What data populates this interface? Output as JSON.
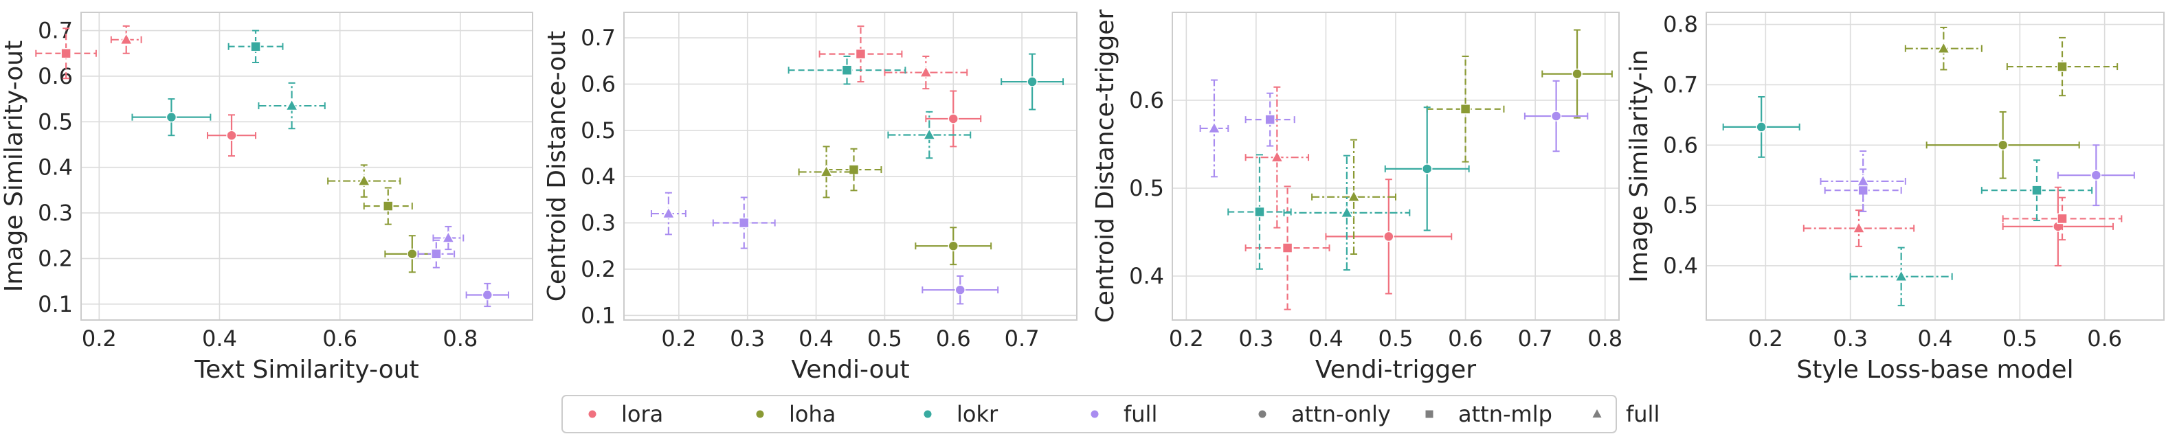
{
  "legend": {
    "entries": [
      {
        "label": "lora",
        "marker": "circle",
        "color": "#f0717f"
      },
      {
        "label": "loha",
        "marker": "circle",
        "color": "#8a9a34"
      },
      {
        "label": "lokr",
        "marker": "circle",
        "color": "#38aaa0"
      },
      {
        "label": "full",
        "marker": "circle",
        "color": "#a98cf0"
      },
      {
        "label": "attn-only",
        "marker": "circle",
        "color": "#7f7f7f"
      },
      {
        "label": "attn-mlp",
        "marker": "square",
        "color": "#7f7f7f"
      },
      {
        "label": "full",
        "marker": "triangle",
        "color": "#7f7f7f"
      }
    ]
  },
  "colors": {
    "lora": "#f0717f",
    "loha": "#8a9a34",
    "lokr": "#38aaa0",
    "full": "#a98cf0"
  },
  "line_styles": {
    "attn-only": "solid",
    "attn-mlp": "dashed",
    "full": "dashdot"
  },
  "chart_data": [
    {
      "type": "scatter",
      "xlabel": "Text Similarity-out",
      "ylabel": "Image Similarity-out",
      "xlim": [
        0.17,
        0.92
      ],
      "ylim": [
        0.065,
        0.74
      ],
      "xticks": [
        0.2,
        0.4,
        0.6,
        0.8
      ],
      "yticks": [
        0.1,
        0.2,
        0.3,
        0.4,
        0.5,
        0.6,
        0.7
      ],
      "grid": true,
      "points": [
        {
          "algo": "lora",
          "config": "attn-only",
          "x": 0.42,
          "xerr": 0.04,
          "y": 0.47,
          "yerr": 0.045
        },
        {
          "algo": "lora",
          "config": "attn-mlp",
          "x": 0.145,
          "xerr": 0.05,
          "y": 0.65,
          "yerr": 0.055
        },
        {
          "algo": "lora",
          "config": "full",
          "x": 0.245,
          "xerr": 0.025,
          "y": 0.68,
          "yerr": 0.03
        },
        {
          "algo": "loha",
          "config": "attn-only",
          "x": 0.72,
          "xerr": 0.045,
          "y": 0.21,
          "yerr": 0.04
        },
        {
          "algo": "loha",
          "config": "attn-mlp",
          "x": 0.68,
          "xerr": 0.04,
          "y": 0.315,
          "yerr": 0.04
        },
        {
          "algo": "loha",
          "config": "full",
          "x": 0.64,
          "xerr": 0.06,
          "y": 0.37,
          "yerr": 0.035
        },
        {
          "algo": "lokr",
          "config": "attn-only",
          "x": 0.32,
          "xerr": 0.065,
          "y": 0.51,
          "yerr": 0.04
        },
        {
          "algo": "lokr",
          "config": "attn-mlp",
          "x": 0.46,
          "xerr": 0.045,
          "y": 0.665,
          "yerr": 0.035
        },
        {
          "algo": "lokr",
          "config": "full",
          "x": 0.52,
          "xerr": 0.055,
          "y": 0.535,
          "yerr": 0.05
        },
        {
          "algo": "full",
          "config": "attn-only",
          "x": 0.845,
          "xerr": 0.035,
          "y": 0.12,
          "yerr": 0.025
        },
        {
          "algo": "full",
          "config": "attn-mlp",
          "x": 0.76,
          "xerr": 0.03,
          "y": 0.21,
          "yerr": 0.03
        },
        {
          "algo": "full",
          "config": "full",
          "x": 0.78,
          "xerr": 0.025,
          "y": 0.245,
          "yerr": 0.025
        }
      ]
    },
    {
      "type": "scatter",
      "xlabel": "Vendi-out",
      "ylabel": "Centroid Distance-out",
      "xlim": [
        0.12,
        0.78
      ],
      "ylim": [
        0.09,
        0.755
      ],
      "xticks": [
        0.2,
        0.3,
        0.4,
        0.5,
        0.6,
        0.7
      ],
      "yticks": [
        0.1,
        0.2,
        0.3,
        0.4,
        0.5,
        0.6,
        0.7
      ],
      "grid": true,
      "points": [
        {
          "algo": "lora",
          "config": "attn-only",
          "x": 0.6,
          "xerr": 0.04,
          "y": 0.525,
          "yerr": 0.06
        },
        {
          "algo": "lora",
          "config": "attn-mlp",
          "x": 0.465,
          "xerr": 0.06,
          "y": 0.665,
          "yerr": 0.06
        },
        {
          "algo": "lora",
          "config": "full",
          "x": 0.56,
          "xerr": 0.06,
          "y": 0.625,
          "yerr": 0.035
        },
        {
          "algo": "loha",
          "config": "attn-only",
          "x": 0.6,
          "xerr": 0.055,
          "y": 0.25,
          "yerr": 0.04
        },
        {
          "algo": "loha",
          "config": "attn-mlp",
          "x": 0.455,
          "xerr": 0.04,
          "y": 0.415,
          "yerr": 0.045
        },
        {
          "algo": "loha",
          "config": "full",
          "x": 0.415,
          "xerr": 0.04,
          "y": 0.41,
          "yerr": 0.055
        },
        {
          "algo": "lokr",
          "config": "attn-only",
          "x": 0.715,
          "xerr": 0.045,
          "y": 0.605,
          "yerr": 0.06
        },
        {
          "algo": "lokr",
          "config": "attn-mlp",
          "x": 0.445,
          "xerr": 0.085,
          "y": 0.63,
          "yerr": 0.03
        },
        {
          "algo": "lokr",
          "config": "full",
          "x": 0.565,
          "xerr": 0.06,
          "y": 0.49,
          "yerr": 0.05
        },
        {
          "algo": "full",
          "config": "attn-only",
          "x": 0.61,
          "xerr": 0.055,
          "y": 0.155,
          "yerr": 0.03
        },
        {
          "algo": "full",
          "config": "attn-mlp",
          "x": 0.295,
          "xerr": 0.045,
          "y": 0.3,
          "yerr": 0.055
        },
        {
          "algo": "full",
          "config": "full",
          "x": 0.185,
          "xerr": 0.025,
          "y": 0.32,
          "yerr": 0.045
        }
      ]
    },
    {
      "type": "scatter",
      "xlabel": "Vendi-trigger",
      "ylabel": "Centroid Distance-trigger",
      "xlim": [
        0.18,
        0.82
      ],
      "ylim": [
        0.35,
        0.7
      ],
      "xticks": [
        0.2,
        0.3,
        0.4,
        0.5,
        0.6,
        0.7,
        0.8
      ],
      "yticks": [
        0.4,
        0.5,
        0.6
      ],
      "grid": true,
      "points": [
        {
          "algo": "lora",
          "config": "attn-only",
          "x": 0.49,
          "xerr": 0.09,
          "y": 0.445,
          "yerr": 0.065
        },
        {
          "algo": "lora",
          "config": "attn-mlp",
          "x": 0.345,
          "xerr": 0.06,
          "y": 0.432,
          "yerr": 0.07
        },
        {
          "algo": "lora",
          "config": "full",
          "x": 0.33,
          "xerr": 0.045,
          "y": 0.535,
          "yerr": 0.08
        },
        {
          "algo": "loha",
          "config": "attn-only",
          "x": 0.76,
          "xerr": 0.05,
          "y": 0.63,
          "yerr": 0.05
        },
        {
          "algo": "loha",
          "config": "attn-mlp",
          "x": 0.6,
          "xerr": 0.055,
          "y": 0.59,
          "yerr": 0.06
        },
        {
          "algo": "loha",
          "config": "full",
          "x": 0.44,
          "xerr": 0.06,
          "y": 0.49,
          "yerr": 0.065
        },
        {
          "algo": "lokr",
          "config": "attn-only",
          "x": 0.545,
          "xerr": 0.06,
          "y": 0.522,
          "yerr": 0.07
        },
        {
          "algo": "lokr",
          "config": "attn-mlp",
          "x": 0.305,
          "xerr": 0.045,
          "y": 0.473,
          "yerr": 0.065
        },
        {
          "algo": "lokr",
          "config": "full",
          "x": 0.43,
          "xerr": 0.09,
          "y": 0.472,
          "yerr": 0.065
        },
        {
          "algo": "full",
          "config": "attn-only",
          "x": 0.73,
          "xerr": 0.045,
          "y": 0.582,
          "yerr": 0.04
        },
        {
          "algo": "full",
          "config": "attn-mlp",
          "x": 0.32,
          "xerr": 0.035,
          "y": 0.578,
          "yerr": 0.03
        },
        {
          "algo": "full",
          "config": "full",
          "x": 0.24,
          "xerr": 0.02,
          "y": 0.568,
          "yerr": 0.055
        }
      ]
    },
    {
      "type": "scatter",
      "xlabel": "Style Loss-base model",
      "ylabel": "Image Similarity-in",
      "xlim": [
        0.13,
        0.67
      ],
      "ylim": [
        0.31,
        0.82
      ],
      "xticks": [
        0.2,
        0.3,
        0.4,
        0.5,
        0.6
      ],
      "yticks": [
        0.4,
        0.5,
        0.6,
        0.7,
        0.8
      ],
      "grid": true,
      "points": [
        {
          "algo": "lora",
          "config": "attn-only",
          "x": 0.545,
          "xerr": 0.065,
          "y": 0.465,
          "yerr": 0.065
        },
        {
          "algo": "lora",
          "config": "attn-mlp",
          "x": 0.55,
          "xerr": 0.07,
          "y": 0.478,
          "yerr": 0.035
        },
        {
          "algo": "lora",
          "config": "full",
          "x": 0.31,
          "xerr": 0.065,
          "y": 0.462,
          "yerr": 0.03
        },
        {
          "algo": "loha",
          "config": "attn-only",
          "x": 0.48,
          "xerr": 0.09,
          "y": 0.6,
          "yerr": 0.055
        },
        {
          "algo": "loha",
          "config": "attn-mlp",
          "x": 0.55,
          "xerr": 0.065,
          "y": 0.73,
          "yerr": 0.048
        },
        {
          "algo": "loha",
          "config": "full",
          "x": 0.41,
          "xerr": 0.045,
          "y": 0.76,
          "yerr": 0.035
        },
        {
          "algo": "lokr",
          "config": "attn-only",
          "x": 0.195,
          "xerr": 0.045,
          "y": 0.63,
          "yerr": 0.05
        },
        {
          "algo": "lokr",
          "config": "attn-mlp",
          "x": 0.52,
          "xerr": 0.065,
          "y": 0.525,
          "yerr": 0.05
        },
        {
          "algo": "lokr",
          "config": "full",
          "x": 0.36,
          "xerr": 0.06,
          "y": 0.382,
          "yerr": 0.048
        },
        {
          "algo": "full",
          "config": "attn-only",
          "x": 0.59,
          "xerr": 0.045,
          "y": 0.55,
          "yerr": 0.05
        },
        {
          "algo": "full",
          "config": "attn-mlp",
          "x": 0.315,
          "xerr": 0.045,
          "y": 0.525,
          "yerr": 0.035
        },
        {
          "algo": "full",
          "config": "full",
          "x": 0.315,
          "xerr": 0.05,
          "y": 0.54,
          "yerr": 0.05
        }
      ]
    }
  ]
}
